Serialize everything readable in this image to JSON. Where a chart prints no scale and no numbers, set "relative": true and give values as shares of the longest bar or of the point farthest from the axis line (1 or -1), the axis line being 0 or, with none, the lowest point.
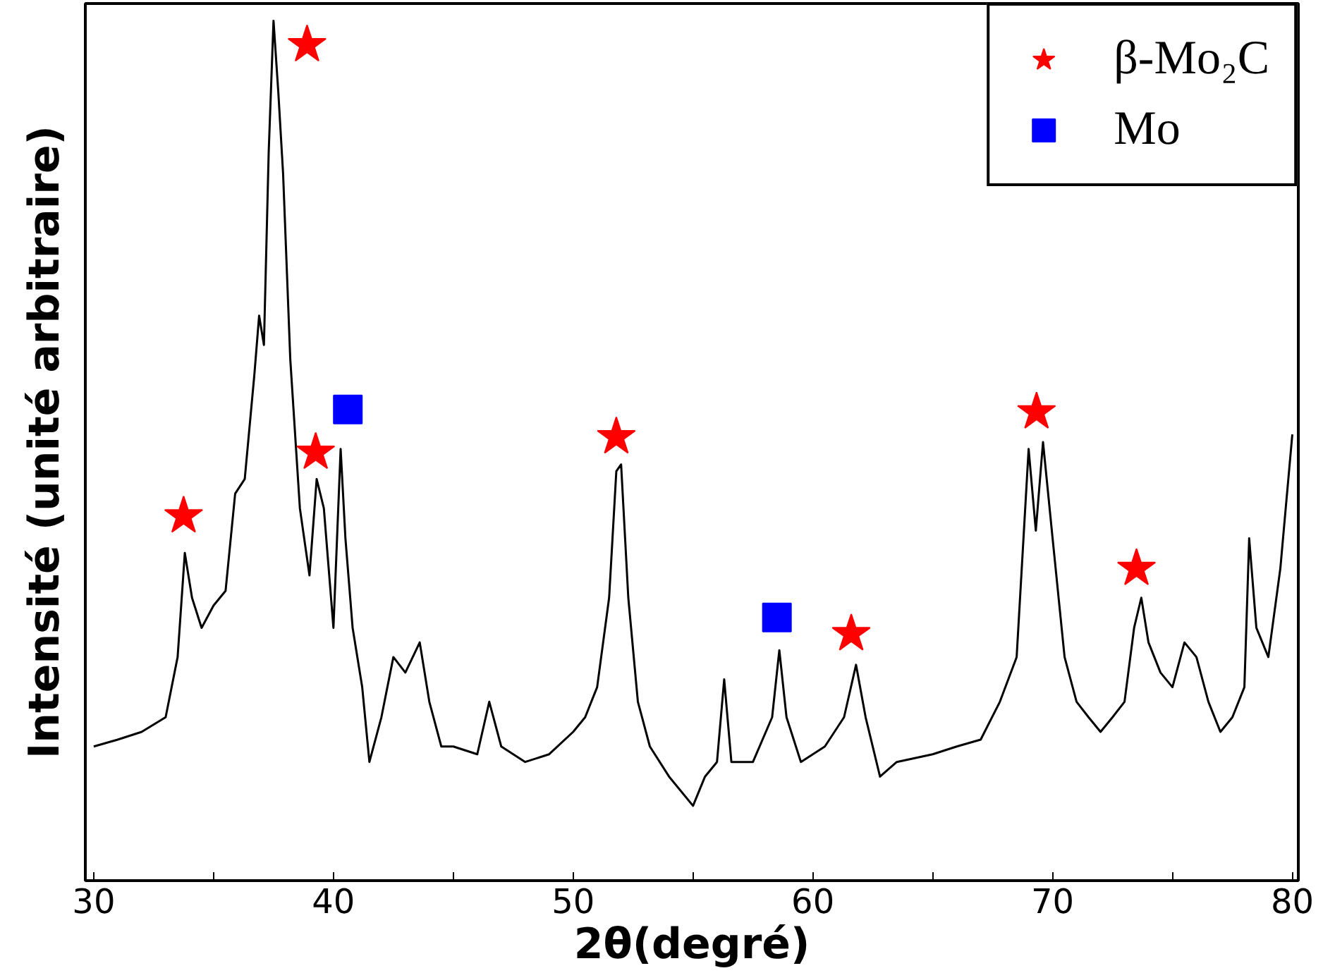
{
  "chart_data": {
    "type": "line",
    "relative": true,
    "xlabel": "2θ(degré)",
    "ylabel": "Intensité (unité arbitraire)",
    "xlim": [
      29.65,
      80.25
    ],
    "xticks": [
      30,
      {
        "value": 35,
        "label": null
      },
      40,
      {
        "value": 45,
        "label": null
      },
      50,
      {
        "value": 55,
        "label": null
      },
      60,
      {
        "value": 65,
        "label": null
      },
      70,
      {
        "value": 75,
        "label": null
      },
      80
    ],
    "grid": false,
    "legend": "top right",
    "series": [
      {
        "color": "#000000",
        "line_style": "solid",
        "x": [
          30,
          31,
          32,
          33,
          33.5,
          33.8,
          34.1,
          34.5,
          35,
          35.5,
          35.9,
          36.3,
          36.7,
          36.9,
          37.1,
          37.3,
          37.5,
          37.7,
          37.9,
          38.2,
          38.6,
          39.0,
          39.3,
          39.6,
          40.0,
          40.3,
          40.5,
          40.8,
          41.2,
          41.5,
          42.0,
          42.5,
          43.0,
          43.6,
          44.0,
          44.5,
          45,
          46,
          46.5,
          47,
          48,
          49,
          50,
          50.5,
          51.0,
          51.5,
          51.8,
          52.0,
          52.3,
          52.7,
          53.2,
          54,
          55,
          55.5,
          56.0,
          56.3,
          56.6,
          57.5,
          58.3,
          58.6,
          58.9,
          59.5,
          60.5,
          61.3,
          61.8,
          62.2,
          62.8,
          63.5,
          65,
          66,
          67,
          67.8,
          68.5,
          69.0,
          69.3,
          69.6,
          70.0,
          70.5,
          71.0,
          71.5,
          72,
          72.5,
          73.0,
          73.4,
          73.7,
          74.0,
          74.5,
          75.0,
          75.5,
          76.0,
          76.5,
          77.0,
          77.5,
          78.0,
          78.2,
          78.5,
          79.0,
          79.5,
          80.0
        ],
        "values": [
          0.156,
          0.164,
          0.173,
          0.19,
          0.26,
          0.381,
          0.329,
          0.294,
          0.32,
          0.337,
          0.45,
          0.467,
          0.588,
          0.657,
          0.623,
          0.848,
          1,
          0.917,
          0.822,
          0.606,
          0.433,
          0.355,
          0.467,
          0.433,
          0.294,
          0.502,
          0.398,
          0.294,
          0.225,
          0.138,
          0.19,
          0.26,
          0.242,
          0.277,
          0.208,
          0.156,
          0.156,
          0.147,
          0.208,
          0.156,
          0.138,
          0.147,
          0.173,
          0.19,
          0.225,
          0.329,
          0.476,
          0.484,
          0.329,
          0.208,
          0.156,
          0.121,
          0.087,
          0.121,
          0.138,
          0.234,
          0.138,
          0.138,
          0.19,
          0.268,
          0.19,
          0.138,
          0.156,
          0.19,
          0.251,
          0.19,
          0.121,
          0.138,
          0.147,
          0.156,
          0.164,
          0.208,
          0.26,
          0.502,
          0.407,
          0.51,
          0.398,
          0.26,
          0.208,
          0.19,
          0.173,
          0.19,
          0.208,
          0.294,
          0.329,
          0.277,
          0.242,
          0.225,
          0.277,
          0.26,
          0.208,
          0.173,
          0.19,
          0.225,
          0.398,
          0.294,
          0.26,
          0.363,
          0.519
        ]
      },
      {
        "type": "scatter",
        "name": "β-Mo₂C",
        "color": "#ff0000",
        "marker": "star",
        "x": [
          33.75,
          38.9,
          39.26,
          51.8,
          61.6,
          69.33,
          73.5
        ],
        "values": [
          0.424,
          0.972,
          0.498,
          0.516,
          0.287,
          0.545,
          0.363
        ]
      },
      {
        "type": "scatter",
        "name": "Mo",
        "color": "#0000ff",
        "marker": "square",
        "x": [
          40.6,
          58.5
        ],
        "values": [
          0.548,
          0.306
        ]
      }
    ]
  }
}
